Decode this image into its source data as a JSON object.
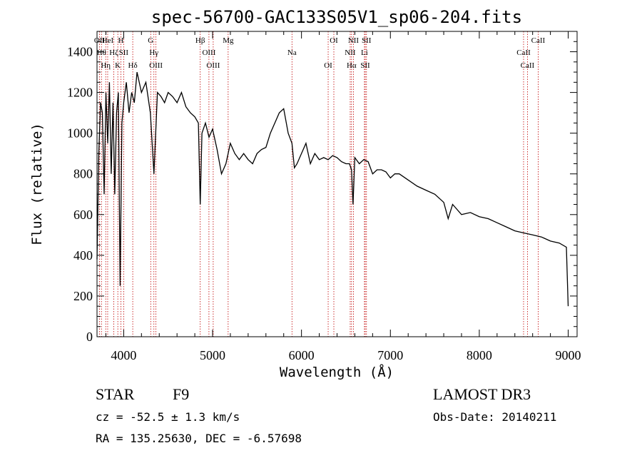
{
  "chart_data": {
    "type": "line",
    "title": "spec-56700-GAC133S05V1_sp06-204.fits",
    "xlabel": "Wavelength (Å)",
    "ylabel": "Flux (relative)",
    "xlim": [
      3700,
      9100
    ],
    "ylim": [
      0,
      1500
    ],
    "x_ticks": [
      4000,
      5000,
      6000,
      7000,
      8000,
      9000
    ],
    "x_tick_labels": [
      "4000",
      "5000",
      "6000",
      "7000",
      "8000",
      "9000"
    ],
    "y_ticks": [
      0,
      200,
      400,
      600,
      800,
      1000,
      1200,
      1400
    ],
    "y_tick_labels": [
      "0",
      "200",
      "400",
      "600",
      "800",
      "1000",
      "1200",
      "1400"
    ],
    "grid": false,
    "line_color": "#000000",
    "marker_color": "#c00000",
    "series": [
      {
        "name": "flux",
        "x": [
          3700,
          3720,
          3740,
          3760,
          3780,
          3800,
          3820,
          3840,
          3860,
          3880,
          3900,
          3920,
          3940,
          3960,
          3980,
          4000,
          4030,
          4060,
          4090,
          4120,
          4150,
          4200,
          4250,
          4300,
          4340,
          4380,
          4420,
          4460,
          4500,
          4550,
          4600,
          4650,
          4700,
          4750,
          4800,
          4840,
          4861,
          4880,
          4920,
          4960,
          5000,
          5050,
          5100,
          5150,
          5200,
          5250,
          5300,
          5350,
          5400,
          5450,
          5500,
          5550,
          5600,
          5650,
          5700,
          5750,
          5800,
          5850,
          5893,
          5920,
          5950,
          6000,
          6050,
          6100,
          6150,
          6200,
          6250,
          6300,
          6350,
          6400,
          6450,
          6500,
          6540,
          6563,
          6580,
          6600,
          6650,
          6700,
          6750,
          6800,
          6850,
          6900,
          6950,
          7000,
          7050,
          7100,
          7200,
          7300,
          7400,
          7500,
          7600,
          7650,
          7700,
          7800,
          7900,
          8000,
          8100,
          8200,
          8300,
          8400,
          8500,
          8600,
          8700,
          8800,
          8900,
          8980,
          9000
        ],
        "y": [
          380,
          900,
          1150,
          1100,
          700,
          1200,
          950,
          1250,
          800,
          1150,
          700,
          1100,
          1200,
          250,
          1050,
          1150,
          1250,
          1100,
          1200,
          1150,
          1300,
          1200,
          1250,
          1100,
          800,
          1200,
          1180,
          1150,
          1200,
          1180,
          1150,
          1200,
          1130,
          1100,
          1080,
          1050,
          650,
          1000,
          1050,
          980,
          1020,
          920,
          800,
          850,
          950,
          900,
          870,
          900,
          870,
          850,
          900,
          920,
          930,
          1000,
          1050,
          1100,
          1120,
          1000,
          950,
          830,
          850,
          900,
          950,
          850,
          900,
          870,
          880,
          870,
          890,
          880,
          860,
          850,
          850,
          820,
          650,
          880,
          850,
          870,
          860,
          800,
          820,
          820,
          810,
          780,
          800,
          800,
          770,
          740,
          720,
          700,
          660,
          580,
          650,
          600,
          610,
          590,
          580,
          560,
          540,
          520,
          510,
          500,
          490,
          470,
          460,
          440,
          150
        ]
      }
    ],
    "line_markers": [
      {
        "wavelength": 3728,
        "label": "OII"
      },
      {
        "wavelength": 3750,
        "label": "Hθ"
      },
      {
        "wavelength": 3798,
        "label": "Hη"
      },
      {
        "wavelength": 3820,
        "label": "HeI"
      },
      {
        "wavelength": 3889,
        "label": "Hζ"
      },
      {
        "wavelength": 3934,
        "label": "K"
      },
      {
        "wavelength": 3969,
        "label": "H"
      },
      {
        "wavelength": 4000,
        "label": "SII"
      },
      {
        "wavelength": 4102,
        "label": "Hδ"
      },
      {
        "wavelength": 4304,
        "label": "G"
      },
      {
        "wavelength": 4340,
        "label": "Hγ"
      },
      {
        "wavelength": 4363,
        "label": "OIII"
      },
      {
        "wavelength": 4861,
        "label": "Hβ"
      },
      {
        "wavelength": 4959,
        "label": "OIII"
      },
      {
        "wavelength": 5007,
        "label": "OIII"
      },
      {
        "wavelength": 5175,
        "label": "Mg"
      },
      {
        "wavelength": 5893,
        "label": "Na"
      },
      {
        "wavelength": 6300,
        "label": "OI"
      },
      {
        "wavelength": 6364,
        "label": "OI"
      },
      {
        "wavelength": 6548,
        "label": "NII"
      },
      {
        "wavelength": 6563,
        "label": "Hα"
      },
      {
        "wavelength": 6584,
        "label": "NII"
      },
      {
        "wavelength": 6708,
        "label": "Li"
      },
      {
        "wavelength": 6717,
        "label": "SII"
      },
      {
        "wavelength": 6731,
        "label": "SII"
      },
      {
        "wavelength": 8498,
        "label": "CaII"
      },
      {
        "wavelength": 8542,
        "label": "CaII"
      },
      {
        "wavelength": 8662,
        "label": "CaII"
      }
    ]
  },
  "info": {
    "object_type": "STAR",
    "subclass": "F9",
    "survey": "LAMOST DR3",
    "cz": "cz = -52.5 ± 1.3 km/s",
    "obs_date": "Obs-Date: 20140211",
    "coords": "RA = 135.25630, DEC =  -6.57698"
  }
}
